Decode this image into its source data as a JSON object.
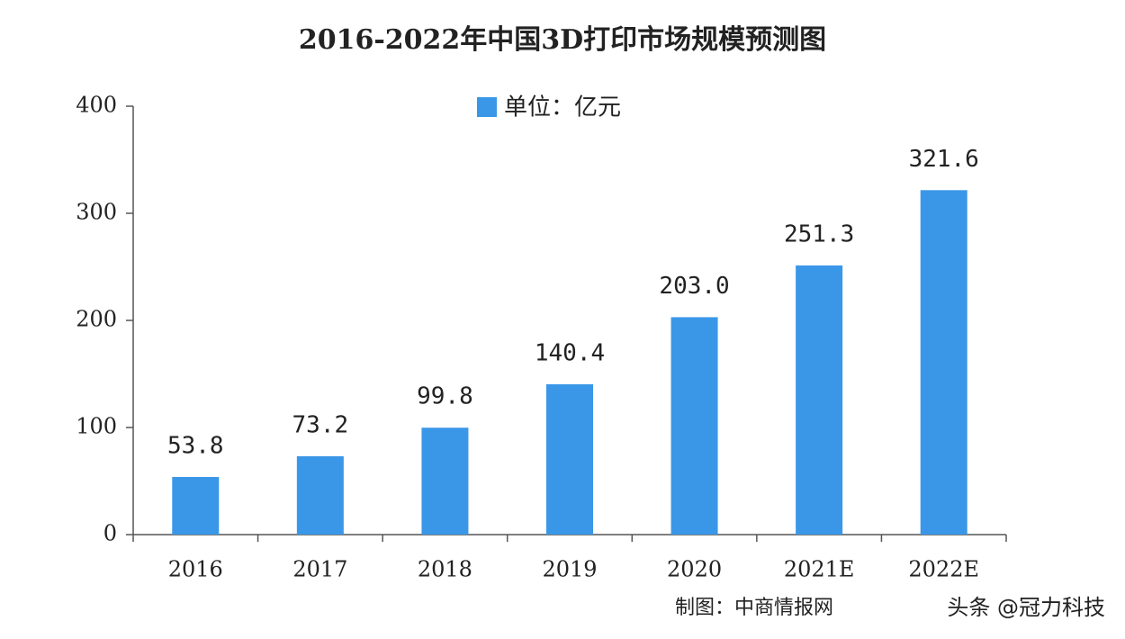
{
  "chart_data": {
    "type": "bar",
    "title": "2016-2022年中国3D打印市场规模预测图",
    "legend": "单位：亿元",
    "categories": [
      "2016",
      "2017",
      "2018",
      "2019",
      "2020",
      "2021E",
      "2022E"
    ],
    "series": [
      {
        "name": "单位：亿元",
        "color": "#3a97e8",
        "values": [
          53.8,
          73.2,
          99.8,
          140.4,
          203.0,
          251.3,
          321.6
        ],
        "value_labels": [
          "53.8",
          "73.2",
          "99.8",
          "140.4",
          "203.0",
          "251.3",
          "321.6"
        ]
      }
    ],
    "ylim": [
      0,
      400
    ],
    "yticks": [
      0,
      100,
      200,
      300,
      400
    ],
    "source": "制图：中商情报网",
    "watermark": "头条 @冠力科技"
  }
}
